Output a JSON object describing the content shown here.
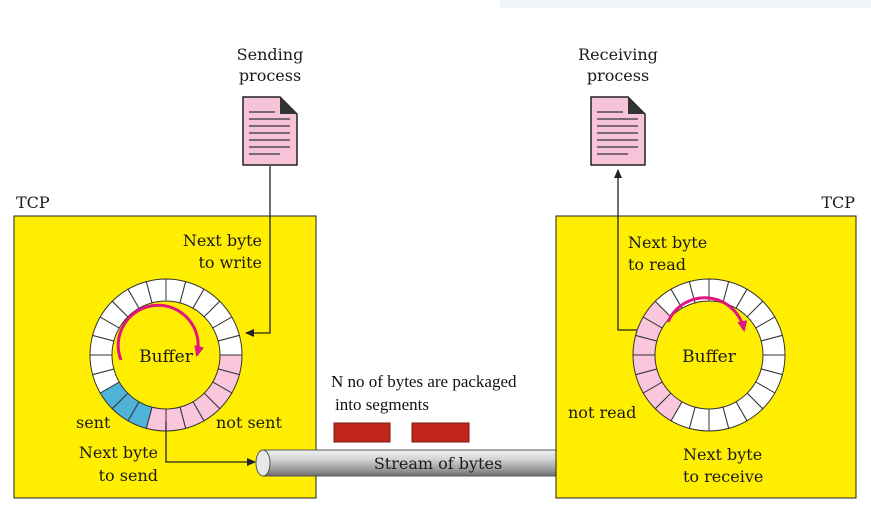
{
  "colors": {
    "box": "#ffee00",
    "sent_cell": "#4fb3d9",
    "unsent_cell": "#f9c6dc",
    "empty_cell": "#ffffff",
    "segment": "#c1261c",
    "arrow_circle": "#e0157f",
    "doc": "#f7c3d8"
  },
  "sender": {
    "tcp_label": "TCP",
    "process_line1": "Sending",
    "process_line2": "process",
    "next_write_line1": "Next byte",
    "next_write_line2": "to write",
    "buffer_label": "Buffer",
    "sent_label": "sent",
    "not_sent_label": "not sent",
    "next_send_line1": "Next byte",
    "next_send_line2": "to send"
  },
  "receiver": {
    "tcp_label": "TCP",
    "process_line1": "Receiving",
    "process_line2": "process",
    "next_read_line1": "Next byte",
    "next_read_line2": "to read",
    "buffer_label": "Buffer",
    "not_read_label": "not read",
    "next_receive_line1": "Next byte",
    "next_receive_line2": "to receive"
  },
  "stream": {
    "label": "Stream of bytes",
    "note_line1": "N no of bytes are packaged",
    "note_line2": "into segments"
  }
}
